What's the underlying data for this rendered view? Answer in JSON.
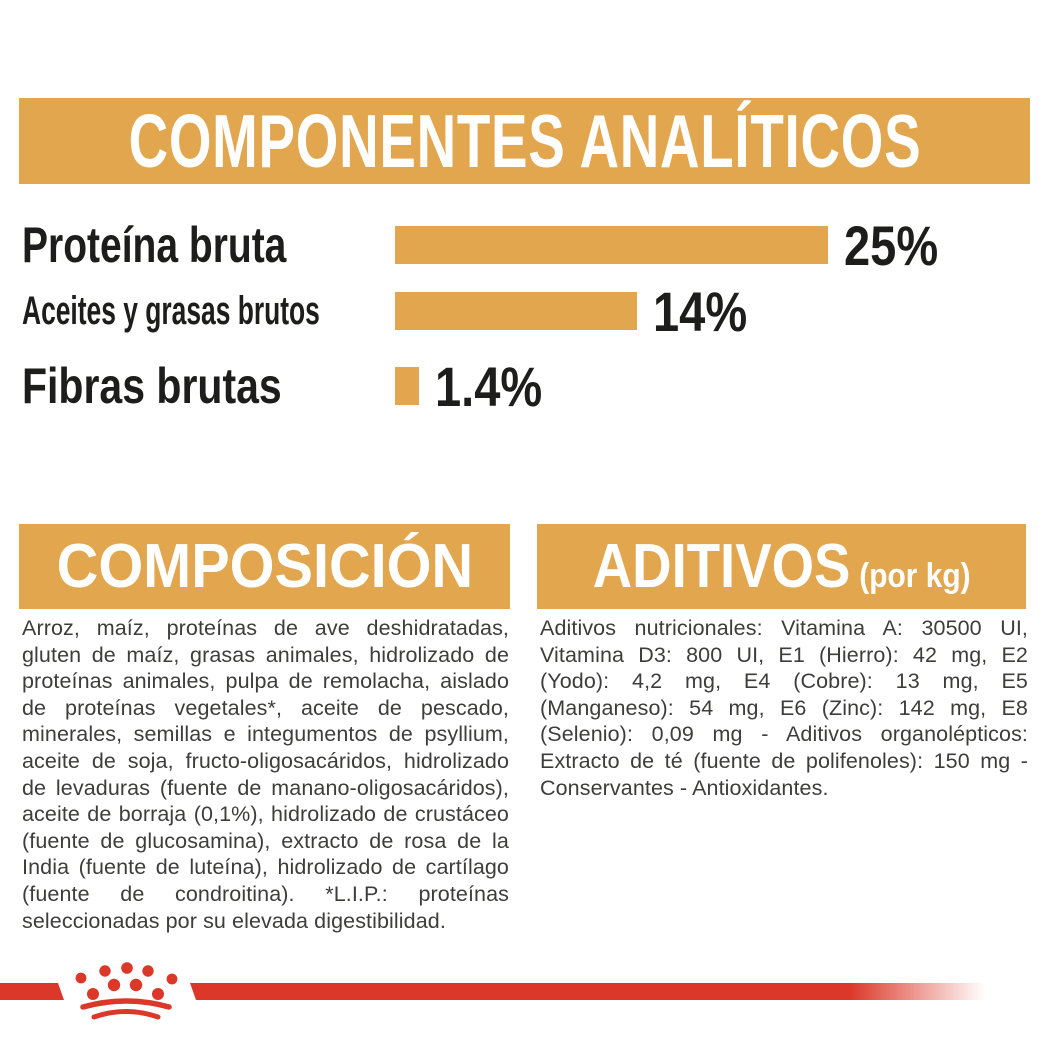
{
  "colors": {
    "gold": "#E2A64F",
    "red": "#DC3829",
    "heading_text": "#FFFFFF",
    "label_text": "#1D1D1B",
    "body_text": "#3D3D3C",
    "background": "#FFFFFF"
  },
  "header": {
    "title": "COMPONENTES ANALÍTICOS"
  },
  "chart_data": {
    "type": "bar",
    "orientation": "horizontal",
    "title": "COMPONENTES ANALÍTICOS",
    "categories": [
      "Proteína bruta",
      "Aceites y grasas brutos",
      "Fibras brutas"
    ],
    "values": [
      25,
      14,
      1.4
    ],
    "value_labels": [
      "25%",
      "14%",
      "1.4%"
    ],
    "xlim": [
      0,
      25
    ],
    "grid": false,
    "bar_color": "#E2A64F",
    "legend": "none"
  },
  "composition": {
    "title": "COMPOSICIÓN",
    "body": "Arroz, maíz, proteínas de ave deshidratadas, gluten de maíz, grasas animales, hidrolizado de proteínas animales, pulpa de remolacha, aislado de proteínas vegetales*, aceite de pescado, minerales, semillas e integumentos de psyllium, aceite de soja, fructo-oligosacáridos, hidrolizado de levaduras (fuente de manano-oligosacáridos), aceite de borraja (0,1%), hidrolizado de crustáceo (fuente de glucosamina), extracto de rosa de la India (fuente de luteína), hidrolizado de cartílago (fuente de condroitina). *L.I.P.: proteínas seleccionadas por su elevada digestibilidad."
  },
  "additives": {
    "title": "ADITIVOS",
    "title_suffix": "(por kg)",
    "body": "Aditivos nutricionales: Vitamina A: 30500 UI, Vitamina D3: 800 UI, E1 (Hierro): 42 mg, E2 (Yodo): 4,2 mg, E4 (Cobre): 13 mg, E5 (Manganeso): 54 mg, E6 (Zinc): 142 mg, E8 (Selenio): 0,09 mg - Aditivos organolépticos: Extracto de té (fuente de polifenoles): 150 mg - Conservantes - Antioxidantes."
  },
  "footer": {
    "logo": "royal-canin-crown"
  }
}
